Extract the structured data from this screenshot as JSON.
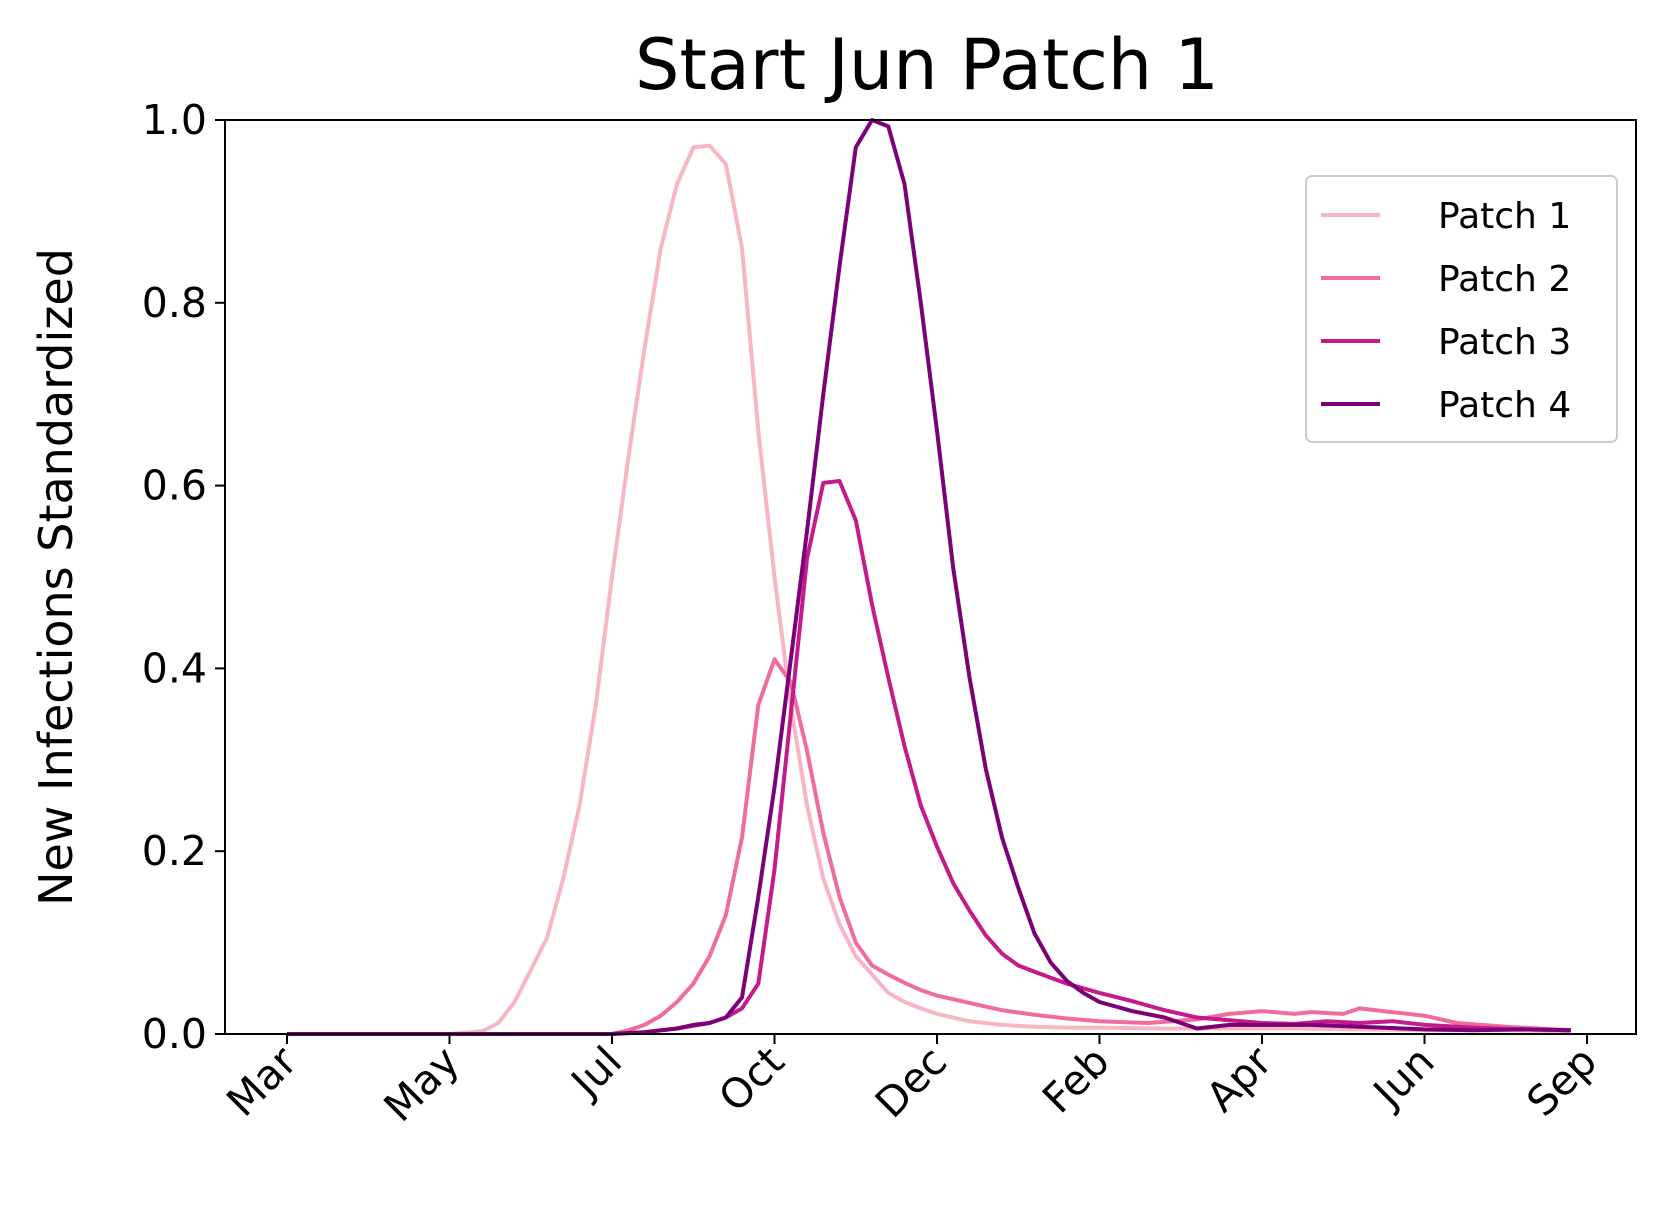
{
  "chart_data": {
    "type": "line",
    "title": "Start Jun Patch 1",
    "xlabel": "",
    "ylabel": "New Infections Standardized",
    "ylim": [
      0,
      1.0
    ],
    "yticks": [
      "0.0",
      "0.2",
      "0.4",
      "0.6",
      "0.8",
      "1.0"
    ],
    "xticks": [
      "Mar",
      "May",
      "Jul",
      "Oct",
      "Dec",
      "Feb",
      "Apr",
      "Jun",
      "Sep"
    ],
    "xlim": [
      0,
      8.5
    ],
    "grid": false,
    "legend": "top-right",
    "x_unit_note": "x values are month-tick positions (0 = Mar, 1 = May, 2 = Jul, 3 = Oct, 4 = Dec, 5 = Feb, 6 = Apr, 7 = Jun, 8 = Sep)",
    "series": [
      {
        "name": "Patch 1",
        "color": "#f7b6c2",
        "points": [
          [
            0,
            0
          ],
          [
            1,
            0
          ],
          [
            1.2,
            0.003
          ],
          [
            1.3,
            0.012
          ],
          [
            1.4,
            0.035
          ],
          [
            1.5,
            0.07
          ],
          [
            1.6,
            0.105
          ],
          [
            1.7,
            0.17
          ],
          [
            1.8,
            0.25
          ],
          [
            1.9,
            0.36
          ],
          [
            2.0,
            0.5
          ],
          [
            2.1,
            0.63
          ],
          [
            2.2,
            0.75
          ],
          [
            2.3,
            0.86
          ],
          [
            2.4,
            0.93
          ],
          [
            2.5,
            0.97
          ],
          [
            2.6,
            0.972
          ],
          [
            2.7,
            0.952
          ],
          [
            2.8,
            0.86
          ],
          [
            2.9,
            0.66
          ],
          [
            3.0,
            0.5
          ],
          [
            3.1,
            0.36
          ],
          [
            3.2,
            0.25
          ],
          [
            3.3,
            0.17
          ],
          [
            3.4,
            0.12
          ],
          [
            3.5,
            0.085
          ],
          [
            3.6,
            0.065
          ],
          [
            3.7,
            0.045
          ],
          [
            3.8,
            0.035
          ],
          [
            3.9,
            0.028
          ],
          [
            4.0,
            0.022
          ],
          [
            4.2,
            0.014
          ],
          [
            4.4,
            0.01
          ],
          [
            4.6,
            0.008
          ],
          [
            4.8,
            0.007
          ],
          [
            5.0,
            0.007
          ],
          [
            5.4,
            0.006
          ],
          [
            5.8,
            0.006
          ],
          [
            6.2,
            0.006
          ],
          [
            6.6,
            0.005
          ],
          [
            7.0,
            0.004
          ],
          [
            7.5,
            0.004
          ],
          [
            7.9,
            0.003
          ]
        ]
      },
      {
        "name": "Patch 2",
        "color": "#f06b9e",
        "points": [
          [
            0,
            0
          ],
          [
            2.0,
            0
          ],
          [
            2.1,
            0.004
          ],
          [
            2.2,
            0.01
          ],
          [
            2.3,
            0.02
          ],
          [
            2.4,
            0.035
          ],
          [
            2.5,
            0.055
          ],
          [
            2.6,
            0.085
          ],
          [
            2.7,
            0.13
          ],
          [
            2.8,
            0.215
          ],
          [
            2.9,
            0.36
          ],
          [
            3.0,
            0.41
          ],
          [
            3.1,
            0.385
          ],
          [
            3.2,
            0.31
          ],
          [
            3.3,
            0.22
          ],
          [
            3.4,
            0.15
          ],
          [
            3.5,
            0.1
          ],
          [
            3.6,
            0.075
          ],
          [
            3.7,
            0.065
          ],
          [
            3.8,
            0.056
          ],
          [
            3.9,
            0.048
          ],
          [
            4.0,
            0.042
          ],
          [
            4.2,
            0.034
          ],
          [
            4.4,
            0.026
          ],
          [
            4.6,
            0.021
          ],
          [
            4.8,
            0.017
          ],
          [
            5.0,
            0.014
          ],
          [
            5.3,
            0.012
          ],
          [
            5.6,
            0.016
          ],
          [
            5.8,
            0.022
          ],
          [
            6.0,
            0.025
          ],
          [
            6.2,
            0.022
          ],
          [
            6.3,
            0.024
          ],
          [
            6.5,
            0.022
          ],
          [
            6.6,
            0.028
          ],
          [
            6.8,
            0.024
          ],
          [
            7.0,
            0.02
          ],
          [
            7.2,
            0.012
          ],
          [
            7.5,
            0.008
          ],
          [
            7.9,
            0.004
          ]
        ]
      },
      {
        "name": "Patch 3",
        "color": "#c51b8a",
        "points": [
          [
            0,
            0
          ],
          [
            2.0,
            0
          ],
          [
            2.2,
            0.002
          ],
          [
            2.4,
            0.006
          ],
          [
            2.6,
            0.012
          ],
          [
            2.7,
            0.018
          ],
          [
            2.8,
            0.028
          ],
          [
            2.9,
            0.055
          ],
          [
            3.0,
            0.18
          ],
          [
            3.1,
            0.35
          ],
          [
            3.2,
            0.52
          ],
          [
            3.3,
            0.603
          ],
          [
            3.4,
            0.605
          ],
          [
            3.5,
            0.562
          ],
          [
            3.6,
            0.47
          ],
          [
            3.7,
            0.39
          ],
          [
            3.8,
            0.315
          ],
          [
            3.9,
            0.25
          ],
          [
            4.0,
            0.205
          ],
          [
            4.1,
            0.165
          ],
          [
            4.2,
            0.135
          ],
          [
            4.3,
            0.108
          ],
          [
            4.4,
            0.088
          ],
          [
            4.5,
            0.075
          ],
          [
            4.6,
            0.068
          ],
          [
            4.8,
            0.055
          ],
          [
            5.0,
            0.045
          ],
          [
            5.2,
            0.036
          ],
          [
            5.4,
            0.026
          ],
          [
            5.6,
            0.018
          ],
          [
            5.8,
            0.015
          ],
          [
            6.0,
            0.012
          ],
          [
            6.2,
            0.011
          ],
          [
            6.4,
            0.014
          ],
          [
            6.6,
            0.012
          ],
          [
            6.8,
            0.014
          ],
          [
            7.0,
            0.01
          ],
          [
            7.3,
            0.007
          ],
          [
            7.6,
            0.005
          ],
          [
            7.9,
            0.004
          ]
        ]
      },
      {
        "name": "Patch 4",
        "color": "#7a0177",
        "points": [
          [
            0,
            0
          ],
          [
            2.0,
            0
          ],
          [
            2.2,
            0.002
          ],
          [
            2.4,
            0.006
          ],
          [
            2.5,
            0.01
          ],
          [
            2.6,
            0.012
          ],
          [
            2.7,
            0.018
          ],
          [
            2.8,
            0.04
          ],
          [
            2.9,
            0.15
          ],
          [
            3.0,
            0.27
          ],
          [
            3.1,
            0.41
          ],
          [
            3.2,
            0.55
          ],
          [
            3.3,
            0.7
          ],
          [
            3.4,
            0.84
          ],
          [
            3.5,
            0.97
          ],
          [
            3.6,
            1.0
          ],
          [
            3.7,
            0.993
          ],
          [
            3.8,
            0.93
          ],
          [
            3.9,
            0.8
          ],
          [
            4.0,
            0.66
          ],
          [
            4.1,
            0.51
          ],
          [
            4.2,
            0.39
          ],
          [
            4.3,
            0.29
          ],
          [
            4.4,
            0.215
          ],
          [
            4.5,
            0.16
          ],
          [
            4.6,
            0.11
          ],
          [
            4.7,
            0.078
          ],
          [
            4.8,
            0.058
          ],
          [
            4.9,
            0.045
          ],
          [
            5.0,
            0.035
          ],
          [
            5.2,
            0.025
          ],
          [
            5.4,
            0.018
          ],
          [
            5.5,
            0.012
          ],
          [
            5.6,
            0.006
          ],
          [
            5.8,
            0.01
          ],
          [
            6.0,
            0.01
          ],
          [
            6.3,
            0.01
          ],
          [
            6.6,
            0.008
          ],
          [
            7.0,
            0.005
          ],
          [
            7.3,
            0.004
          ],
          [
            7.6,
            0.005
          ],
          [
            7.9,
            0.004
          ]
        ]
      }
    ]
  }
}
